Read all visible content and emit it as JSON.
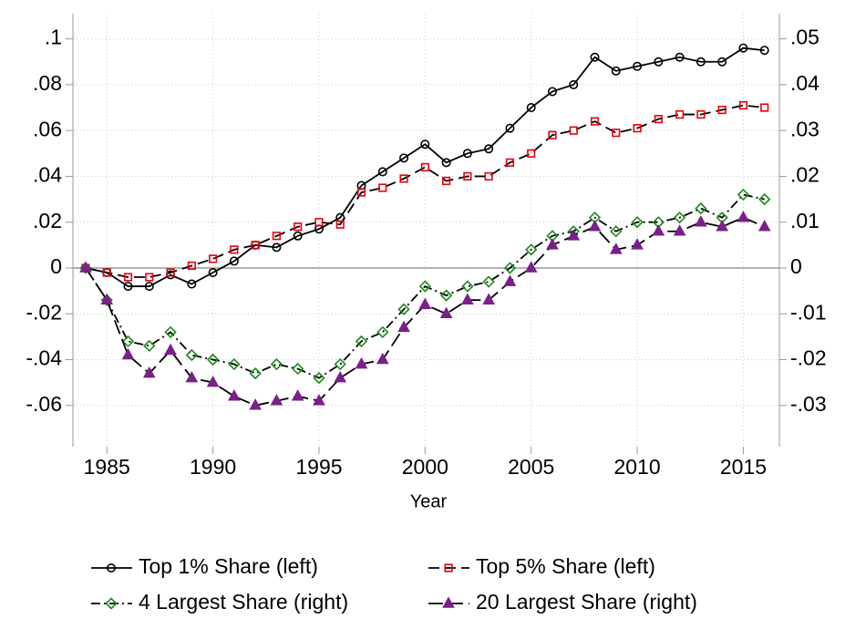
{
  "chart_data": {
    "type": "line",
    "x_label": "Year",
    "x": [
      1984,
      1985,
      1986,
      1987,
      1988,
      1989,
      1990,
      1991,
      1992,
      1993,
      1994,
      1995,
      1996,
      1997,
      1998,
      1999,
      2000,
      2001,
      2002,
      2003,
      2004,
      2005,
      2006,
      2007,
      2008,
      2009,
      2010,
      2011,
      2012,
      2013,
      2014,
      2015,
      2016
    ],
    "xlim": [
      1983.4,
      2016.7
    ],
    "xticks": [
      1985,
      1990,
      1995,
      2000,
      2005,
      2010,
      2015
    ],
    "ylim": [
      -0.078,
      0.111
    ],
    "yticks": [
      {
        "value": -0.06,
        "label": "-.06"
      },
      {
        "value": -0.04,
        "label": "-.04"
      },
      {
        "value": -0.02,
        "label": "-.02"
      },
      0,
      {
        "value": 0.02,
        "label": ".02"
      },
      {
        "value": 0.04,
        "label": ".04"
      },
      {
        "value": 0.06,
        "label": ".06"
      },
      {
        "value": 0.08,
        "label": ".08"
      },
      {
        "value": 0.1,
        "label": ".1"
      }
    ],
    "y2lim": [
      -0.039,
      0.0555
    ],
    "y2ticks": [
      {
        "value": -0.03,
        "label": "-.03"
      },
      {
        "value": -0.02,
        "label": "-.02"
      },
      {
        "value": -0.01,
        "label": "-.01"
      },
      0,
      {
        "value": 0.01,
        "label": ".01"
      },
      {
        "value": 0.02,
        "label": ".02"
      },
      {
        "value": 0.03,
        "label": ".03"
      },
      {
        "value": 0.04,
        "label": ".04"
      },
      {
        "value": 0.05,
        "label": ".05"
      }
    ],
    "grid": true,
    "line_color": "#000000",
    "series": [
      {
        "name": "Top 1% Share (left)",
        "color": "#000000",
        "marker": "circle",
        "dash": "none",
        "axis": "y",
        "values": [
          0,
          -0.002,
          -0.008,
          -0.008,
          -0.003,
          -0.007,
          -0.002,
          0.003,
          0.01,
          0.009,
          0.014,
          0.017,
          0.022,
          0.036,
          0.042,
          0.048,
          0.054,
          0.046,
          0.05,
          0.052,
          0.061,
          0.07,
          0.077,
          0.08,
          0.092,
          0.086,
          0.088,
          0.09,
          0.092,
          0.09,
          0.09,
          0.096,
          0.095
        ]
      },
      {
        "name": "Top 5% Share (left)",
        "color": "#e8000b",
        "marker": "square",
        "dash": "12 6",
        "axis": "y",
        "values": [
          0,
          -0.002,
          -0.004,
          -0.004,
          -0.002,
          0.001,
          0.004,
          0.008,
          0.01,
          0.014,
          0.018,
          0.02,
          0.019,
          0.033,
          0.035,
          0.039,
          0.044,
          0.038,
          0.04,
          0.04,
          0.046,
          0.05,
          0.058,
          0.06,
          0.064,
          0.059,
          0.061,
          0.065,
          0.067,
          0.067,
          0.069,
          0.071,
          0.07
        ]
      },
      {
        "name": "4 Largest Share (right)",
        "color": "#1a8a1a",
        "marker": "diamond",
        "dash": "10 4 2 4",
        "axis": "y2",
        "values": [
          0,
          -0.007,
          -0.016,
          -0.017,
          -0.014,
          -0.019,
          -0.02,
          -0.021,
          -0.023,
          -0.021,
          -0.022,
          -0.024,
          -0.021,
          -0.016,
          -0.014,
          -0.009,
          -0.004,
          -0.006,
          -0.004,
          -0.003,
          0.0,
          0.004,
          0.007,
          0.008,
          0.011,
          0.008,
          0.01,
          0.01,
          0.011,
          0.013,
          0.011,
          0.016,
          0.015
        ]
      },
      {
        "name": "20 Largest Share (right)",
        "color": "#7b1f8a",
        "marker": "triangle",
        "dash": "16 6",
        "axis": "y2",
        "values": [
          0,
          -0.007,
          -0.019,
          -0.023,
          -0.018,
          -0.024,
          -0.025,
          -0.028,
          -0.03,
          -0.029,
          -0.028,
          -0.029,
          -0.024,
          -0.021,
          -0.02,
          -0.013,
          -0.008,
          -0.01,
          -0.007,
          -0.007,
          -0.003,
          0.0,
          0.005,
          0.007,
          0.009,
          0.004,
          0.005,
          0.008,
          0.008,
          0.01,
          0.009,
          0.011,
          0.009
        ]
      }
    ]
  }
}
